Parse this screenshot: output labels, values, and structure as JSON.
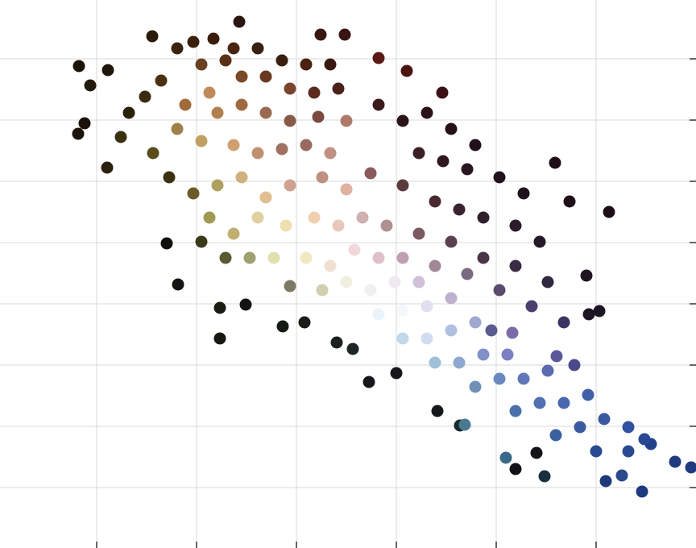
{
  "chart_data": {
    "type": "scatter",
    "xlim": [
      0,
      864
    ],
    "ylim": [
      0,
      680
    ],
    "xticks": [
      120,
      244,
      368,
      492,
      616,
      740
    ],
    "yticks": [
      75,
      151,
      227,
      303,
      379,
      455,
      531,
      607
    ],
    "grid": true,
    "x": [
      98,
      134,
      112,
      105,
      97,
      133,
      189,
      297,
      398,
      428,
      470,
      505,
      549,
      689,
      707,
      756,
      728,
      744,
      731,
      207,
      221,
      273,
      273,
      305,
      351,
      378,
      418,
      438,
      458,
      492,
      543,
      571,
      577,
      628,
      640,
      666,
      676,
      752,
      797,
      772,
      858,
      838,
      808,
      691,
      713,
      636,
      610,
      470,
      500,
      530,
      560,
      590,
      520,
      550,
      580,
      620,
      650,
      500,
      540,
      570,
      600,
      640,
      670,
      520,
      560,
      600,
      640,
      680,
      580,
      620,
      660,
      700,
      540,
      220,
      240,
      265,
      290,
      320,
      350,
      380,
      410,
      250,
      280,
      300,
      330,
      360,
      390,
      420,
      200,
      180,
      160,
      150,
      230,
      260,
      270,
      300,
      330,
      360,
      395,
      430,
      220,
      250,
      290,
      320,
      350,
      380,
      410,
      190,
      210,
      240,
      270,
      300,
      330,
      360,
      400,
      430,
      460,
      260,
      290,
      320,
      355,
      390,
      420,
      450,
      480,
      250,
      280,
      310,
      340,
      380,
      410,
      440,
      470,
      500,
      360,
      400,
      430,
      460,
      490,
      520,
      470,
      500,
      530,
      560,
      500,
      530,
      560,
      590,
      540,
      570,
      600,
      630,
      590,
      620,
      650,
      680,
      640,
      670,
      700,
      730,
      690,
      720,
      750,
      780,
      740,
      780,
      800
    ],
    "values": [
      598,
      593,
      574,
      527,
      514,
      472,
      635,
      653,
      637,
      637,
      608,
      592,
      565,
      478,
      430,
      417,
      338,
      294,
      290,
      378,
      327,
      298,
      260,
      302,
      275,
      280,
      255,
      247,
      206,
      217,
      170,
      152,
      153,
      112,
      98,
      118,
      89,
      83,
      70,
      90,
      100,
      107,
      129,
      238,
      227,
      267,
      270,
      550,
      530,
      540,
      520,
      500,
      490,
      480,
      470,
      460,
      440,
      450,
      430,
      420,
      410,
      400,
      380,
      390,
      380,
      360,
      350,
      330,
      340,
      320,
      300,
      280,
      350,
      620,
      628,
      632,
      620,
      620,
      605,
      600,
      600,
      600,
      605,
      585,
      585,
      570,
      565,
      570,
      580,
      560,
      540,
      510,
      550,
      565,
      540,
      550,
      540,
      530,
      535,
      530,
      520,
      505,
      500,
      490,
      495,
      500,
      490,
      490,
      460,
      440,
      450,
      460,
      435,
      450,
      460,
      445,
      465,
      410,
      390,
      410,
      400,
      410,
      400,
      410,
      400,
      380,
      360,
      360,
      360,
      360,
      350,
      370,
      360,
      360,
      325,
      320,
      330,
      320,
      330,
      330,
      290,
      295,
      300,
      310,
      260,
      260,
      270,
      280,
      230,
      230,
      240,
      240,
      200,
      210,
      210,
      220,
      170,
      180,
      180,
      190,
      140,
      150,
      160,
      150,
      120,
      120,
      135
    ],
    "colors": [
      "#1c1308",
      "#1e160a",
      "#241a0c",
      "#1a1209",
      "#1c140a",
      "#2a210e",
      "#2a1a0a",
      "#2c1510",
      "#3a1610",
      "#3a1410",
      "#5a1a14",
      "#4a1410",
      "#3a1014",
      "#1e1016",
      "#1e1018",
      "#1e0e16",
      "#201422",
      "#1a1424",
      "#1c1422",
      "#10100c",
      "#121410",
      "#1a1c14",
      "#141810",
      "#121410",
      "#141a14",
      "#1a1c18",
      "#1a2020",
      "#1c2424",
      "#141818",
      "#141818",
      "#141818",
      "#1a2a30",
      "#4a7a90",
      "#3a6a8a",
      "#101418",
      "#121418",
      "#1a3040",
      "#1e3a7a",
      "#1e3a80",
      "#2a4a8a",
      "#203a80",
      "#203a80",
      "#22408a",
      "#5a5a9a",
      "#4a4a8a",
      "#7a6aaa",
      "#5a5a90",
      "#3a1a1c",
      "#2a1418",
      "#2a1216",
      "#241016",
      "#20101a",
      "#3a2024",
      "#301820",
      "#2a1620",
      "#22121c",
      "#20121c",
      "#5a3a3a",
      "#4a2a30",
      "#3a2430",
      "#30202c",
      "#2a1c2a",
      "#24182a",
      "#7a5a60",
      "#5a4050",
      "#4a3448",
      "#3a2c44",
      "#302840",
      "#7a6a80",
      "#5a4a70",
      "#4a4070",
      "#3a3460",
      "#a08898",
      "#3a2410",
      "#3a2008",
      "#3a1c0a",
      "#4a2410",
      "#3a2010",
      "#3a1e0e",
      "#4a2010",
      "#3a1a10",
      "#6a4020",
      "#5a3014",
      "#7a4a28",
      "#6a3a20",
      "#7a4430",
      "#5a2a1c",
      "#4a2018",
      "#4a3010",
      "#3a2a10",
      "#2a200c",
      "#3a3010",
      "#a06a3a",
      "#c08a5a",
      "#b08050",
      "#a06a40",
      "#9a6a50",
      "#8a5a48",
      "#7a4a40",
      "#b07a6a",
      "#a0804a",
      "#c0a060",
      "#d0a070",
      "#c09070",
      "#a07060",
      "#9a6a60",
      "#c09080",
      "#5a4a1c",
      "#3a3212",
      "#6a5a28",
      "#b0a060",
      "#d0b080",
      "#e0c090",
      "#d0a090",
      "#c09080",
      "#e0b0a0",
      "#8a5a5a",
      "#a09a50",
      "#c0b070",
      "#e0d0a0",
      "#f0e0b0",
      "#f0d0b0",
      "#e8c8b8",
      "#d0b0b0",
      "#b09090",
      "#3a3a18",
      "#5a5a30",
      "#a0a070",
      "#e0e0b0",
      "#f0e8c0",
      "#f0e0d0",
      "#f0d8d8",
      "#e0c0c8",
      "#c0a0b0",
      "#7a7a60",
      "#d0d0b0",
      "#f0f0e0",
      "#f0f0f0",
      "#f0e8f0",
      "#d0c0d8",
      "#e8f4f8",
      "#f4f8fc",
      "#e0e0f0",
      "#c0b0d0",
      "#c0d8e8",
      "#d0dcf0",
      "#b0c0e0",
      "#a0a8d0",
      "#a0c0d8",
      "#90a8d0",
      "#8090c8",
      "#7a80c0",
      "#7090b8",
      "#6a88c0",
      "#6078b8",
      "#5a6ab0",
      "#4a70a8",
      "#5070b0",
      "#4a68b0",
      "#4060a8",
      "#3a60a0",
      "#3a5aa0",
      "#3a58a0",
      "#3050a0",
      "#2a4a90",
      "#2a4a90",
      "#2a4890"
    ]
  }
}
